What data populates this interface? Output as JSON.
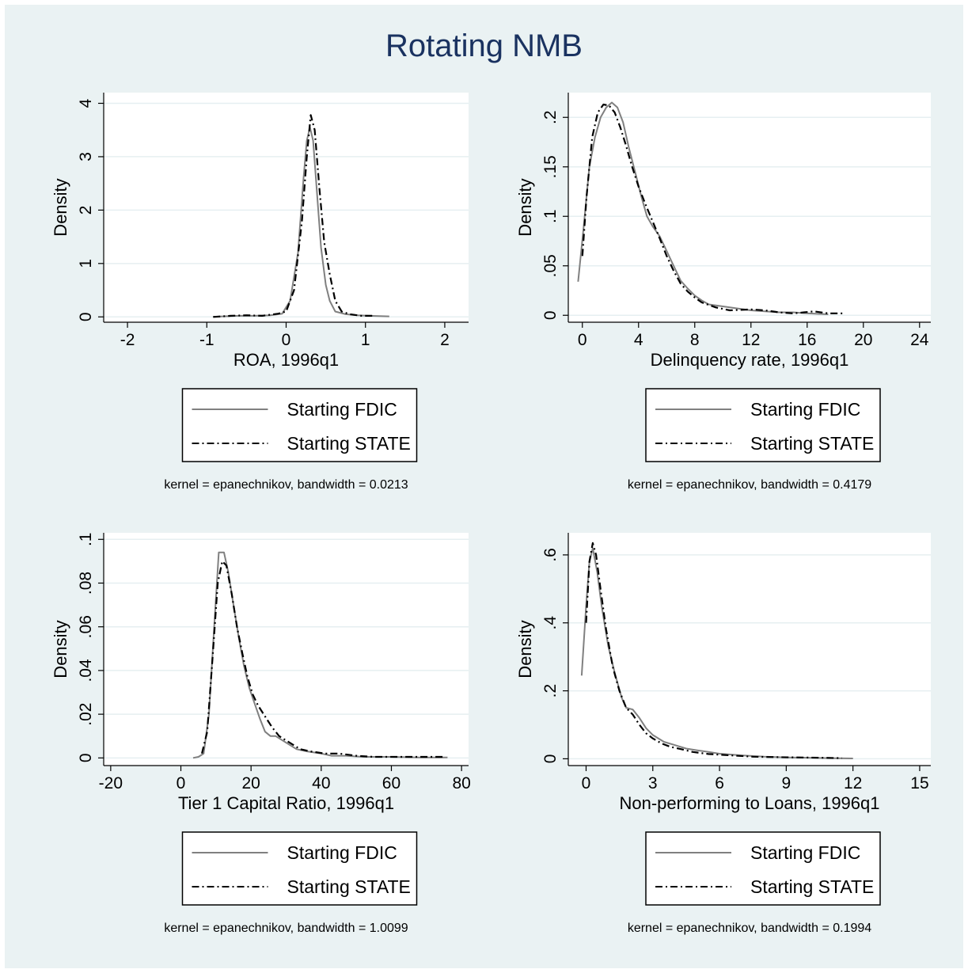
{
  "figure_title": "Rotating NMB",
  "chart_data": [
    {
      "type": "line",
      "xlabel": "ROA, 1996q1",
      "ylabel": "Density",
      "xlim": [
        -2.3,
        2.3
      ],
      "ylim": [
        -0.1,
        4.2
      ],
      "xticks": [
        -2,
        -1,
        0,
        1,
        2
      ],
      "xtick_labels": [
        "-2",
        "-1",
        "0",
        "1",
        "2"
      ],
      "yticks": [
        0,
        1,
        2,
        3,
        4
      ],
      "ytick_labels": [
        "0",
        "1",
        "2",
        "3",
        "4"
      ],
      "grid": true,
      "legend": "below",
      "note": "kernel = epanechnikov, bandwidth = 0.0213",
      "series": [
        {
          "name": "Starting FDIC",
          "style": "solid",
          "color": "#808080",
          "points": [
            [
              -0.92,
              0.0
            ],
            [
              -0.8,
              0.01
            ],
            [
              -0.6,
              0.02
            ],
            [
              -0.4,
              0.02
            ],
            [
              -0.2,
              0.03
            ],
            [
              -0.05,
              0.06
            ],
            [
              0.05,
              0.3
            ],
            [
              0.15,
              1.2
            ],
            [
              0.22,
              2.6
            ],
            [
              0.26,
              3.3
            ],
            [
              0.3,
              3.55
            ],
            [
              0.34,
              3.3
            ],
            [
              0.38,
              2.5
            ],
            [
              0.44,
              1.3
            ],
            [
              0.5,
              0.6
            ],
            [
              0.55,
              0.3
            ],
            [
              0.62,
              0.1
            ],
            [
              0.75,
              0.05
            ],
            [
              0.9,
              0.03
            ],
            [
              1.05,
              0.02
            ],
            [
              1.3,
              0.01
            ]
          ]
        },
        {
          "name": "Starting STATE",
          "style": "dashdot",
          "color": "#000000",
          "points": [
            [
              -0.92,
              0.0
            ],
            [
              -0.7,
              0.02
            ],
            [
              -0.5,
              0.03
            ],
            [
              -0.3,
              0.02
            ],
            [
              -0.1,
              0.06
            ],
            [
              0.0,
              0.1
            ],
            [
              0.1,
              0.5
            ],
            [
              0.2,
              1.8
            ],
            [
              0.26,
              3.0
            ],
            [
              0.31,
              3.78
            ],
            [
              0.36,
              3.5
            ],
            [
              0.42,
              2.4
            ],
            [
              0.48,
              1.4
            ],
            [
              0.55,
              0.8
            ],
            [
              0.62,
              0.3
            ],
            [
              0.7,
              0.1
            ],
            [
              0.8,
              0.05
            ],
            [
              0.95,
              0.02
            ],
            [
              1.1,
              0.02
            ]
          ]
        }
      ]
    },
    {
      "type": "line",
      "xlabel": "Delinquency rate, 1996q1",
      "ylabel": "Density",
      "xlim": [
        -1.0,
        24.8
      ],
      "ylim": [
        -0.007,
        0.225
      ],
      "xticks": [
        0,
        4,
        8,
        12,
        16,
        20,
        24
      ],
      "xtick_labels": [
        "0",
        "4",
        "8",
        "12",
        "16",
        "20",
        "24"
      ],
      "yticks": [
        0,
        0.05,
        0.1,
        0.15,
        0.2
      ],
      "ytick_labels": [
        "0",
        ".05",
        ".1",
        ".15",
        ".2"
      ],
      "grid": true,
      "legend": "below",
      "note": "kernel = epanechnikov, bandwidth = 0.4179",
      "series": [
        {
          "name": "Starting FDIC",
          "style": "solid",
          "color": "#808080",
          "points": [
            [
              -0.3,
              0.034
            ],
            [
              0.1,
              0.09
            ],
            [
              0.5,
              0.15
            ],
            [
              0.9,
              0.18
            ],
            [
              1.3,
              0.2
            ],
            [
              1.7,
              0.21
            ],
            [
              2.1,
              0.215
            ],
            [
              2.5,
              0.21
            ],
            [
              2.9,
              0.195
            ],
            [
              3.3,
              0.17
            ],
            [
              3.7,
              0.148
            ],
            [
              4.2,
              0.12
            ],
            [
              4.6,
              0.1
            ],
            [
              5.0,
              0.09
            ],
            [
              5.5,
              0.08
            ],
            [
              6.0,
              0.065
            ],
            [
              6.5,
              0.05
            ],
            [
              7.0,
              0.035
            ],
            [
              7.5,
              0.027
            ],
            [
              8.0,
              0.02
            ],
            [
              8.5,
              0.015
            ],
            [
              9.0,
              0.011
            ],
            [
              10.0,
              0.009
            ],
            [
              11.0,
              0.007
            ],
            [
              12.0,
              0.005
            ],
            [
              13.0,
              0.004
            ],
            [
              14.0,
              0.003
            ],
            [
              15.0,
              0.003
            ],
            [
              16.0,
              0.002
            ],
            [
              17.5,
              0.001
            ]
          ]
        },
        {
          "name": "Starting STATE",
          "style": "dashdot",
          "color": "#000000",
          "points": [
            [
              0.0,
              0.06
            ],
            [
              0.3,
              0.12
            ],
            [
              0.7,
              0.18
            ],
            [
              1.1,
              0.205
            ],
            [
              1.5,
              0.213
            ],
            [
              1.9,
              0.212
            ],
            [
              2.3,
              0.205
            ],
            [
              2.7,
              0.19
            ],
            [
              3.1,
              0.172
            ],
            [
              3.5,
              0.152
            ],
            [
              4.0,
              0.13
            ],
            [
              4.5,
              0.112
            ],
            [
              5.0,
              0.095
            ],
            [
              5.5,
              0.078
            ],
            [
              6.0,
              0.06
            ],
            [
              6.5,
              0.045
            ],
            [
              7.0,
              0.032
            ],
            [
              7.5,
              0.024
            ],
            [
              8.0,
              0.018
            ],
            [
              8.5,
              0.013
            ],
            [
              9.5,
              0.008
            ],
            [
              10.5,
              0.005
            ],
            [
              12.0,
              0.006
            ],
            [
              13.0,
              0.005
            ],
            [
              14.0,
              0.003
            ],
            [
              15.0,
              0.002
            ],
            [
              16.5,
              0.004
            ],
            [
              17.5,
              0.002
            ],
            [
              18.5,
              0.002
            ]
          ]
        }
      ]
    },
    {
      "type": "line",
      "xlabel": "Tier 1 Capital Ratio, 1996q1",
      "ylabel": "Density",
      "xlim": [
        -22,
        82
      ],
      "ylim": [
        -0.0035,
        0.103
      ],
      "xticks": [
        -20,
        0,
        20,
        40,
        60,
        80
      ],
      "xtick_labels": [
        "-20",
        "0",
        "20",
        "40",
        "60",
        "80"
      ],
      "yticks": [
        0,
        0.02,
        0.04,
        0.06,
        0.08,
        0.1
      ],
      "ytick_labels": [
        "0",
        ".02",
        ".04",
        ".06",
        ".08",
        ".1"
      ],
      "grid": true,
      "legend": "below",
      "note": "kernel = epanechnikov, bandwidth = 1.0099",
      "series": [
        {
          "name": "Starting FDIC",
          "style": "solid",
          "color": "#808080",
          "points": [
            [
              3.5,
              0.0
            ],
            [
              5.0,
              0.0005
            ],
            [
              6.5,
              0.002
            ],
            [
              8.0,
              0.02
            ],
            [
              9.5,
              0.06
            ],
            [
              10.8,
              0.094
            ],
            [
              12.3,
              0.094
            ],
            [
              13.5,
              0.085
            ],
            [
              15.0,
              0.07
            ],
            [
              16.5,
              0.055
            ],
            [
              18.0,
              0.042
            ],
            [
              19.5,
              0.032
            ],
            [
              21.0,
              0.025
            ],
            [
              22.5,
              0.018
            ],
            [
              24.0,
              0.012
            ],
            [
              25.5,
              0.01
            ],
            [
              27.0,
              0.01
            ],
            [
              29.0,
              0.008
            ],
            [
              31.0,
              0.006
            ],
            [
              33.0,
              0.004
            ],
            [
              36.0,
              0.003
            ],
            [
              40.0,
              0.002
            ],
            [
              43.0,
              0.001
            ],
            [
              47.0,
              0.001
            ],
            [
              52.0,
              0.0005
            ],
            [
              60.0,
              0.0005
            ],
            [
              68.0,
              0.0002
            ],
            [
              76.0,
              0.0002
            ]
          ]
        },
        {
          "name": "Starting STATE",
          "style": "dashdot",
          "color": "#000000",
          "points": [
            [
              6.0,
              0.002
            ],
            [
              7.5,
              0.012
            ],
            [
              9.0,
              0.045
            ],
            [
              10.5,
              0.08
            ],
            [
              11.8,
              0.09
            ],
            [
              13.0,
              0.088
            ],
            [
              14.5,
              0.075
            ],
            [
              16.0,
              0.06
            ],
            [
              17.5,
              0.048
            ],
            [
              19.0,
              0.037
            ],
            [
              20.5,
              0.029
            ],
            [
              22.0,
              0.024
            ],
            [
              24.0,
              0.019
            ],
            [
              26.0,
              0.014
            ],
            [
              28.0,
              0.01
            ],
            [
              30.0,
              0.008
            ],
            [
              32.0,
              0.006
            ],
            [
              34.0,
              0.004
            ],
            [
              37.0,
              0.003
            ],
            [
              41.0,
              0.002
            ],
            [
              45.0,
              0.002
            ],
            [
              50.0,
              0.001
            ],
            [
              55.0,
              0.0005
            ],
            [
              65.0,
              0.0005
            ],
            [
              75.0,
              0.0005
            ]
          ]
        }
      ]
    },
    {
      "type": "line",
      "xlabel": "Non-performing to Loans, 1996q1",
      "ylabel": "Density",
      "xlim": [
        -0.8,
        15.5
      ],
      "ylim": [
        -0.02,
        0.665
      ],
      "xticks": [
        0,
        3,
        6,
        9,
        12,
        15
      ],
      "xtick_labels": [
        "0",
        "3",
        "6",
        "9",
        "12",
        "15"
      ],
      "yticks": [
        0,
        0.2,
        0.4,
        0.6
      ],
      "ytick_labels": [
        "0",
        ".2",
        ".4",
        ".6"
      ],
      "grid": true,
      "legend": "below",
      "note": "kernel = epanechnikov, bandwidth = 0.1994",
      "series": [
        {
          "name": "Starting FDIC",
          "style": "solid",
          "color": "#808080",
          "points": [
            [
              -0.2,
              0.245
            ],
            [
              0.0,
              0.45
            ],
            [
              0.15,
              0.58
            ],
            [
              0.3,
              0.62
            ],
            [
              0.5,
              0.55
            ],
            [
              0.7,
              0.45
            ],
            [
              1.0,
              0.33
            ],
            [
              1.3,
              0.25
            ],
            [
              1.6,
              0.18
            ],
            [
              1.8,
              0.15
            ],
            [
              2.1,
              0.145
            ],
            [
              2.4,
              0.12
            ],
            [
              2.7,
              0.09
            ],
            [
              3.0,
              0.07
            ],
            [
              3.5,
              0.05
            ],
            [
              4.0,
              0.04
            ],
            [
              4.5,
              0.03
            ],
            [
              5.0,
              0.025
            ],
            [
              5.5,
              0.02
            ],
            [
              6.0,
              0.015
            ],
            [
              7.0,
              0.01
            ],
            [
              8.0,
              0.006
            ],
            [
              9.0,
              0.004
            ],
            [
              10.0,
              0.003
            ],
            [
              11.0,
              0.002
            ],
            [
              12.0,
              0.001
            ]
          ]
        },
        {
          "name": "Starting STATE",
          "style": "dashdot",
          "color": "#000000",
          "points": [
            [
              0.0,
              0.4
            ],
            [
              0.15,
              0.58
            ],
            [
              0.3,
              0.635
            ],
            [
              0.45,
              0.6
            ],
            [
              0.65,
              0.5
            ],
            [
              0.9,
              0.38
            ],
            [
              1.2,
              0.27
            ],
            [
              1.5,
              0.2
            ],
            [
              1.8,
              0.15
            ],
            [
              2.1,
              0.13
            ],
            [
              2.4,
              0.1
            ],
            [
              2.7,
              0.075
            ],
            [
              3.0,
              0.06
            ],
            [
              3.4,
              0.045
            ],
            [
              3.8,
              0.035
            ],
            [
              4.3,
              0.028
            ],
            [
              4.8,
              0.02
            ],
            [
              5.5,
              0.014
            ],
            [
              6.5,
              0.01
            ],
            [
              7.5,
              0.006
            ],
            [
              8.5,
              0.005
            ],
            [
              9.5,
              0.004
            ],
            [
              10.5,
              0.003
            ],
            [
              11.5,
              0.002
            ]
          ]
        }
      ]
    }
  ]
}
